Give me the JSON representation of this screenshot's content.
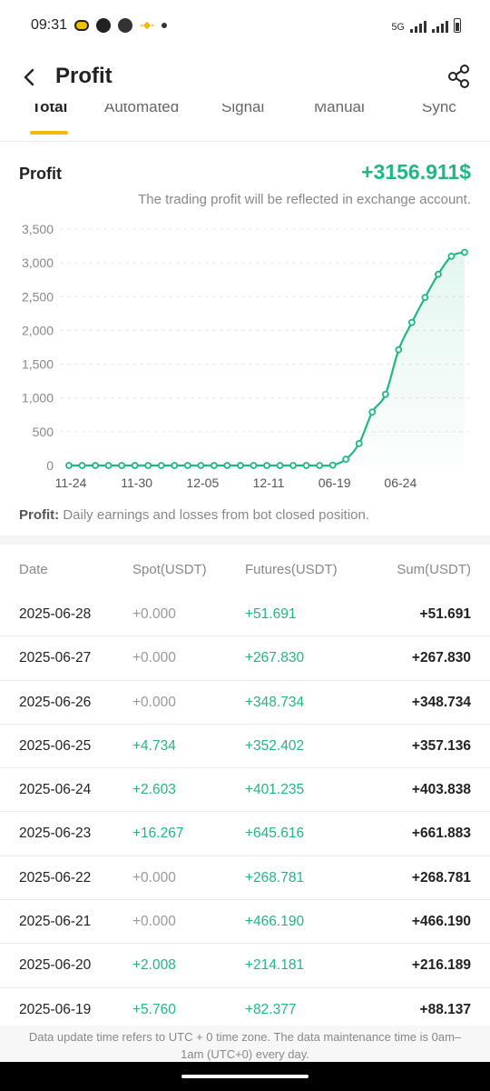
{
  "status_bar": {
    "time": "09:31",
    "network": "5G"
  },
  "header": {
    "title": "Profit"
  },
  "tabs": [
    {
      "label": "Total",
      "active": true
    },
    {
      "label": "Automated",
      "active": false
    },
    {
      "label": "Signal",
      "active": false
    },
    {
      "label": "Manual",
      "active": false
    },
    {
      "label": "Sync",
      "active": false
    }
  ],
  "summary": {
    "label": "Profit",
    "value": "+3156.911$",
    "note": "The trading profit will be reflected in exchange account."
  },
  "chart_data": {
    "type": "area",
    "x_tick_labels": [
      "11-24",
      "11-30",
      "12-05",
      "12-11",
      "06-19",
      "06-24"
    ],
    "y_tick_labels": [
      "0",
      "500",
      "1,000",
      "1,500",
      "2,000",
      "2,500",
      "3,000",
      "3,500"
    ],
    "ylim": [
      0,
      3500
    ],
    "grid": true,
    "line_color": "#1fb784",
    "values": [
      0,
      0,
      0,
      0,
      0,
      0,
      0,
      0,
      0,
      0,
      0,
      0,
      0,
      0,
      0,
      0,
      0,
      0,
      0,
      0,
      5,
      93,
      325,
      791,
      1053,
      1714,
      2118,
      2487,
      2831,
      3099,
      3157
    ]
  },
  "chart_caption": {
    "label": "Profit:",
    "text": " Daily earnings and losses from bot closed position."
  },
  "table": {
    "headers": {
      "date": "Date",
      "spot": "Spot(USDT)",
      "futures": "Futures(USDT)",
      "sum": "Sum(USDT)"
    },
    "rows": [
      {
        "date": "2025-06-28",
        "spot": "+0.000",
        "futures": "+51.691",
        "sum": "+51.691"
      },
      {
        "date": "2025-06-27",
        "spot": "+0.000",
        "futures": "+267.830",
        "sum": "+267.830"
      },
      {
        "date": "2025-06-26",
        "spot": "+0.000",
        "futures": "+348.734",
        "sum": "+348.734"
      },
      {
        "date": "2025-06-25",
        "spot": "+4.734",
        "futures": "+352.402",
        "sum": "+357.136"
      },
      {
        "date": "2025-06-24",
        "spot": "+2.603",
        "futures": "+401.235",
        "sum": "+403.838"
      },
      {
        "date": "2025-06-23",
        "spot": "+16.267",
        "futures": "+645.616",
        "sum": "+661.883"
      },
      {
        "date": "2025-06-22",
        "spot": "+0.000",
        "futures": "+268.781",
        "sum": "+268.781"
      },
      {
        "date": "2025-06-21",
        "spot": "+0.000",
        "futures": "+466.190",
        "sum": "+466.190"
      },
      {
        "date": "2025-06-20",
        "spot": "+2.008",
        "futures": "+214.181",
        "sum": "+216.189"
      },
      {
        "date": "2025-06-19",
        "spot": "+5.760",
        "futures": "+82.377",
        "sum": "+88.137"
      }
    ]
  },
  "footer": {
    "note": "Data update time refers to UTC + 0 time zone. The data maintenance time is 0am–1am (UTC+0) every day."
  },
  "icons": {
    "back": "chevron-left-icon",
    "share": "share-icon"
  }
}
